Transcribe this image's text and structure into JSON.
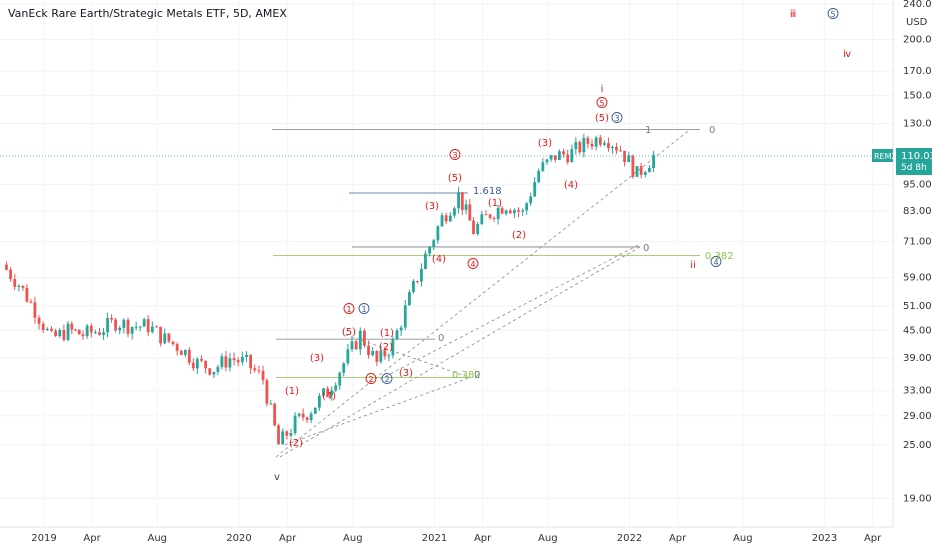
{
  "header": {
    "title": "VanEck Rare Earth/Strategic Metals ETF, 5D, AMEX"
  },
  "price_axis": {
    "currency": "USD"
  },
  "last_price": {
    "symbol": "REMX",
    "value": "110.03",
    "countdown": "5d 8h",
    "color": "#26a69a"
  },
  "colors": {
    "up": "#26a69a",
    "down": "#ef5350",
    "wave_red": "#e31919",
    "wave_blue": "#3b5b92",
    "fib_green": "#8bc34a",
    "fib_navy": "#3b5b92",
    "grey_line": "#787b86"
  },
  "chart_data": {
    "type": "candlestick",
    "y_scale": "log",
    "ylim": [
      17,
      240
    ],
    "y_ticks": [
      "240.00",
      "200.00",
      "170.00",
      "150.00",
      "130.00",
      "110.03",
      "95.00",
      "83.00",
      "71.00",
      "59.00",
      "51.00",
      "45.00",
      "39.00",
      "33.00",
      "29.00",
      "25.00",
      "19.00"
    ],
    "x_ticks": [
      "2019",
      "Apr",
      "Aug",
      "2020",
      "Apr",
      "Aug",
      "2021",
      "Apr",
      "Aug",
      "2022",
      "Apr",
      "Aug",
      "2023",
      "Apr"
    ],
    "series": [
      {
        "date": "2018-10",
        "close": 63
      },
      {
        "date": "2018-11",
        "close": 57
      },
      {
        "date": "2018-12",
        "close": 50
      },
      {
        "date": "2019-01",
        "close": 43
      },
      {
        "date": "2019-02",
        "close": 45
      },
      {
        "date": "2019-03",
        "close": 44
      },
      {
        "date": "2019-04",
        "close": 45
      },
      {
        "date": "2019-05",
        "close": 47
      },
      {
        "date": "2019-06",
        "close": 46
      },
      {
        "date": "2019-07",
        "close": 46
      },
      {
        "date": "2019-08",
        "close": 43
      },
      {
        "date": "2019-09",
        "close": 41
      },
      {
        "date": "2019-10",
        "close": 38
      },
      {
        "date": "2019-11",
        "close": 37
      },
      {
        "date": "2019-12",
        "close": 39
      },
      {
        "date": "2020-01",
        "close": 38
      },
      {
        "date": "2020-02",
        "close": 35
      },
      {
        "date": "2020-03",
        "close": 25
      },
      {
        "date": "2020-04",
        "close": 28
      },
      {
        "date": "2020-05",
        "close": 30
      },
      {
        "date": "2020-06",
        "close": 33
      },
      {
        "date": "2020-07",
        "close": 38
      },
      {
        "date": "2020-08",
        "close": 44
      },
      {
        "date": "2020-09",
        "close": 38
      },
      {
        "date": "2020-10",
        "close": 42
      },
      {
        "date": "2020-11",
        "close": 53
      },
      {
        "date": "2020-12",
        "close": 66
      },
      {
        "date": "2021-01",
        "close": 80
      },
      {
        "date": "2021-02",
        "close": 90
      },
      {
        "date": "2021-03",
        "close": 75
      },
      {
        "date": "2021-04",
        "close": 82
      },
      {
        "date": "2021-05",
        "close": 86
      },
      {
        "date": "2021-06",
        "close": 82
      },
      {
        "date": "2021-07",
        "close": 102
      },
      {
        "date": "2021-08",
        "close": 110
      },
      {
        "date": "2021-09",
        "close": 112
      },
      {
        "date": "2021-10",
        "close": 118
      },
      {
        "date": "2021-11",
        "close": 122
      },
      {
        "date": "2021-12",
        "close": 114
      },
      {
        "date": "2022-01",
        "close": 100
      },
      {
        "date": "2022-02",
        "close": 110
      }
    ]
  },
  "annotations": {
    "waves": [
      {
        "text": "ⅲ",
        "color": "red"
      },
      {
        "text": "5",
        "circle": "blue"
      },
      {
        "text": "ⅳ",
        "color": "red"
      },
      {
        "text": "i",
        "color": "red"
      },
      {
        "text": "5",
        "circle": "red"
      },
      {
        "text": "(5)",
        "color": "red"
      },
      {
        "text": "3",
        "circle": "blue"
      },
      {
        "text": "3",
        "circle": "red"
      },
      {
        "text": "(5)",
        "color": "red"
      },
      {
        "text": "(3)",
        "color": "red"
      },
      {
        "text": "(3)",
        "color": "red"
      },
      {
        "text": "(1)",
        "color": "red"
      },
      {
        "text": "(2)",
        "color": "red"
      },
      {
        "text": "(4)",
        "color": "red"
      },
      {
        "text": "(4)",
        "color": "red"
      },
      {
        "text": "4",
        "circle": "red"
      },
      {
        "text": "ii",
        "color": "red"
      },
      {
        "text": "4",
        "circle": "blue"
      },
      {
        "text": "1",
        "circle": "red"
      },
      {
        "text": "1",
        "circle": "blue"
      },
      {
        "text": "(5)",
        "color": "red"
      },
      {
        "text": "(1)",
        "color": "red"
      },
      {
        "text": "(3)",
        "color": "red"
      },
      {
        "text": "(1)",
        "color": "red"
      },
      {
        "text": "(4)",
        "color": "red"
      },
      {
        "text": "(2)",
        "color": "red"
      },
      {
        "text": "2",
        "circle": "red"
      },
      {
        "text": "2",
        "circle": "blue"
      },
      {
        "text": "(3)",
        "color": "red"
      },
      {
        "text": "(2)",
        "color": "red"
      },
      {
        "text": "v",
        "color": "dark"
      }
    ],
    "fib_labels": [
      {
        "text": "1",
        "color": "grey"
      },
      {
        "text": "0",
        "color": "grey"
      },
      {
        "text": "1.618",
        "color": "navy"
      },
      {
        "text": "0",
        "color": "grey"
      },
      {
        "text": "0.382",
        "color": "green"
      },
      {
        "text": "0",
        "color": "grey"
      },
      {
        "text": "0.382",
        "color": "green"
      },
      {
        "text": "0",
        "color": "grey"
      }
    ]
  }
}
